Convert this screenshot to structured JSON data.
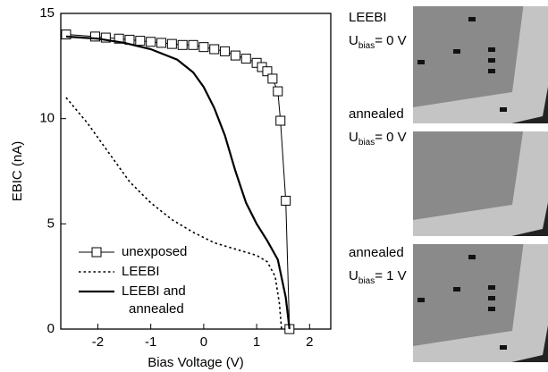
{
  "chart_data": {
    "type": "line",
    "xlabel": "Bias Voltage (V)",
    "ylabel": "EBIC (nA)",
    "xlim": [
      -2.7,
      2.4
    ],
    "ylim": [
      0,
      15
    ],
    "xticks": [
      -2,
      -1,
      0,
      1,
      2
    ],
    "yticks": [
      0,
      5,
      10,
      15
    ],
    "legend": "lower left",
    "series": [
      {
        "name": "unexposed",
        "color": "#000",
        "style": "solid-square",
        "x": [
          -2.6,
          -2.05,
          -1.85,
          -1.6,
          -1.4,
          -1.2,
          -1.0,
          -0.8,
          -0.6,
          -0.4,
          -0.2,
          0,
          0.2,
          0.4,
          0.6,
          0.8,
          1.0,
          1.1,
          1.2,
          1.3,
          1.4,
          1.45,
          1.55,
          1.62
        ],
        "values": [
          14.0,
          13.9,
          13.85,
          13.8,
          13.75,
          13.7,
          13.65,
          13.6,
          13.55,
          13.5,
          13.5,
          13.4,
          13.3,
          13.2,
          13.0,
          12.85,
          12.65,
          12.45,
          12.25,
          11.9,
          11.3,
          9.9,
          6.1,
          0
        ]
      },
      {
        "name": "LEEBI",
        "color": "#000",
        "style": "dotted",
        "x": [
          -2.6,
          -2.2,
          -1.8,
          -1.4,
          -1.0,
          -0.6,
          -0.2,
          0.2,
          0.6,
          1.0,
          1.2,
          1.35,
          1.43,
          1.47
        ],
        "values": [
          11.0,
          9.8,
          8.4,
          7.0,
          6.0,
          5.2,
          4.6,
          4.1,
          3.8,
          3.5,
          3.2,
          2.5,
          1.2,
          0
        ]
      },
      {
        "name": "LEEBI and annealed",
        "color": "#000",
        "style": "solid-thick",
        "x": [
          -2.6,
          -2.0,
          -1.5,
          -1.0,
          -0.5,
          -0.2,
          0,
          0.2,
          0.4,
          0.6,
          0.8,
          1.0,
          1.2,
          1.4,
          1.55,
          1.62
        ],
        "values": [
          13.9,
          13.8,
          13.6,
          13.3,
          12.8,
          12.2,
          11.5,
          10.5,
          9.2,
          7.5,
          6.0,
          5.0,
          4.2,
          3.3,
          1.5,
          0
        ]
      }
    ]
  },
  "panels": [
    {
      "label": "LEEBI",
      "u": "U",
      "sub": "bias",
      "rest": "= 0 V"
    },
    {
      "label": "annealed",
      "u": "U",
      "sub": "bias",
      "rest": "= 0 V"
    },
    {
      "label": "annealed",
      "u": "U",
      "sub": "bias",
      "rest": "= 1 V"
    }
  ]
}
